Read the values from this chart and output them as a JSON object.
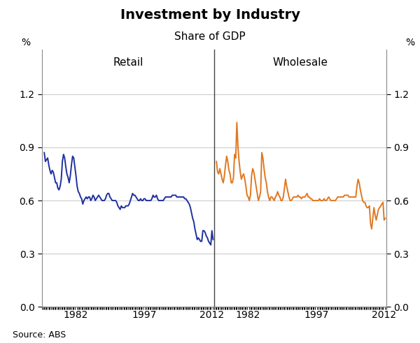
{
  "title": "Investment by Industry",
  "subtitle": "Share of GDP",
  "source": "Source: ABS",
  "left_label": "Retail",
  "right_label": "Wholesale",
  "ylabel_left": "%",
  "ylabel_right": "%",
  "ylim": [
    0.0,
    1.45
  ],
  "yticks": [
    0.0,
    0.3,
    0.6,
    0.9,
    1.2
  ],
  "retail_color": "#2030a0",
  "wholesale_color": "#e07820",
  "line_width": 1.4,
  "retail_data": [
    0.87,
    0.82,
    0.83,
    0.84,
    0.8,
    0.77,
    0.75,
    0.77,
    0.76,
    0.73,
    0.7,
    0.7,
    0.67,
    0.66,
    0.68,
    0.72,
    0.82,
    0.86,
    0.84,
    0.79,
    0.75,
    0.73,
    0.7,
    0.74,
    0.8,
    0.85,
    0.84,
    0.79,
    0.74,
    0.68,
    0.65,
    0.64,
    0.62,
    0.61,
    0.58,
    0.6,
    0.61,
    0.62,
    0.61,
    0.62,
    0.62,
    0.6,
    0.61,
    0.63,
    0.62,
    0.6,
    0.61,
    0.62,
    0.63,
    0.62,
    0.61,
    0.6,
    0.6,
    0.6,
    0.61,
    0.63,
    0.64,
    0.64,
    0.62,
    0.61,
    0.6,
    0.6,
    0.6,
    0.6,
    0.59,
    0.57,
    0.56,
    0.55,
    0.57,
    0.56,
    0.56,
    0.56,
    0.57,
    0.57,
    0.57,
    0.58,
    0.6,
    0.62,
    0.64,
    0.63,
    0.63,
    0.62,
    0.61,
    0.6,
    0.6,
    0.61,
    0.6,
    0.6,
    0.61,
    0.61,
    0.6,
    0.6,
    0.6,
    0.6,
    0.6,
    0.61,
    0.63,
    0.62,
    0.62,
    0.63,
    0.61,
    0.6,
    0.6,
    0.6,
    0.6,
    0.6,
    0.61,
    0.62,
    0.62,
    0.62,
    0.62,
    0.62,
    0.62,
    0.63,
    0.63,
    0.63,
    0.63,
    0.62,
    0.62,
    0.62,
    0.62,
    0.62,
    0.62,
    0.62,
    0.61,
    0.61,
    0.6,
    0.59,
    0.58,
    0.56,
    0.53,
    0.5,
    0.48,
    0.44,
    0.41,
    0.38,
    0.39,
    0.38,
    0.37,
    0.37,
    0.43,
    0.43,
    0.42,
    0.4,
    0.39,
    0.37,
    0.36,
    0.35,
    0.43,
    0.38
  ],
  "wholesale_data": [
    0.82,
    0.76,
    0.75,
    0.78,
    0.75,
    0.72,
    0.7,
    0.74,
    0.8,
    0.85,
    0.82,
    0.77,
    0.75,
    0.7,
    0.7,
    0.73,
    0.86,
    0.84,
    1.04,
    0.9,
    0.82,
    0.76,
    0.72,
    0.74,
    0.75,
    0.72,
    0.68,
    0.63,
    0.62,
    0.6,
    0.63,
    0.74,
    0.78,
    0.76,
    0.72,
    0.68,
    0.64,
    0.6,
    0.62,
    0.65,
    0.87,
    0.84,
    0.78,
    0.73,
    0.7,
    0.65,
    0.62,
    0.6,
    0.62,
    0.62,
    0.61,
    0.6,
    0.62,
    0.63,
    0.65,
    0.63,
    0.62,
    0.6,
    0.6,
    0.62,
    0.67,
    0.72,
    0.68,
    0.65,
    0.62,
    0.6,
    0.6,
    0.61,
    0.62,
    0.62,
    0.62,
    0.62,
    0.63,
    0.62,
    0.62,
    0.61,
    0.62,
    0.62,
    0.62,
    0.63,
    0.64,
    0.62,
    0.62,
    0.61,
    0.61,
    0.6,
    0.6,
    0.6,
    0.6,
    0.6,
    0.6,
    0.61,
    0.6,
    0.6,
    0.6,
    0.61,
    0.6,
    0.6,
    0.61,
    0.62,
    0.61,
    0.6,
    0.6,
    0.6,
    0.6,
    0.6,
    0.61,
    0.62,
    0.62,
    0.62,
    0.62,
    0.62,
    0.62,
    0.63,
    0.63,
    0.63,
    0.63,
    0.62,
    0.62,
    0.62,
    0.62,
    0.62,
    0.62,
    0.62,
    0.68,
    0.72,
    0.7,
    0.66,
    0.63,
    0.6,
    0.59,
    0.59,
    0.57,
    0.56,
    0.56,
    0.57,
    0.47,
    0.44,
    0.5,
    0.56,
    0.52,
    0.49,
    0.52,
    0.55,
    0.56,
    0.57,
    0.58,
    0.59,
    0.49,
    0.5
  ],
  "grid_color": "#cccccc",
  "background_color": "#ffffff",
  "spine_color": "#888888",
  "divider_color": "#444444"
}
